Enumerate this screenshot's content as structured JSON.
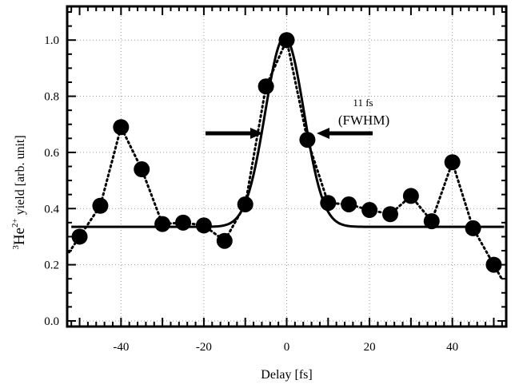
{
  "chart_data": {
    "type": "scatter",
    "xlabel": "Delay [fs]",
    "ylabel_parts": {
      "sup_mass": "3",
      "element": "He",
      "sup_charge": "2+",
      "rest": " yield [arb. unit]"
    },
    "xlim": [
      -53,
      53
    ],
    "ylim": [
      -0.02,
      1.12
    ],
    "x_ticks": [
      -40,
      -20,
      0,
      20,
      40
    ],
    "y_ticks": [
      0.0,
      0.2,
      0.4,
      0.6,
      0.8,
      1.0
    ],
    "y_tick_labels": [
      "0.0",
      "0.2",
      "0.4",
      "0.6",
      "0.8",
      "1.0"
    ],
    "grid": true,
    "series": [
      {
        "style": "markers-dotted",
        "x": [
          -50,
          -45,
          -40,
          -35,
          -30,
          -25,
          -20,
          -15,
          -10,
          -5,
          0,
          5,
          10,
          15,
          20,
          25,
          30,
          35,
          40,
          45,
          50
        ],
        "y": [
          0.3,
          0.41,
          0.69,
          0.54,
          0.345,
          0.35,
          0.34,
          0.285,
          0.415,
          0.835,
          1.0,
          0.645,
          0.42,
          0.415,
          0.395,
          0.38,
          0.445,
          0.355,
          0.565,
          0.33,
          0.2
        ]
      },
      {
        "style": "gaussian-fit",
        "baseline": 0.335,
        "amplitude": 0.675,
        "center": -0.5,
        "fwhm": 11
      }
    ],
    "annotations": {
      "fwhm_value": "11 fs",
      "fwhm_label": "(FWHM)"
    }
  }
}
